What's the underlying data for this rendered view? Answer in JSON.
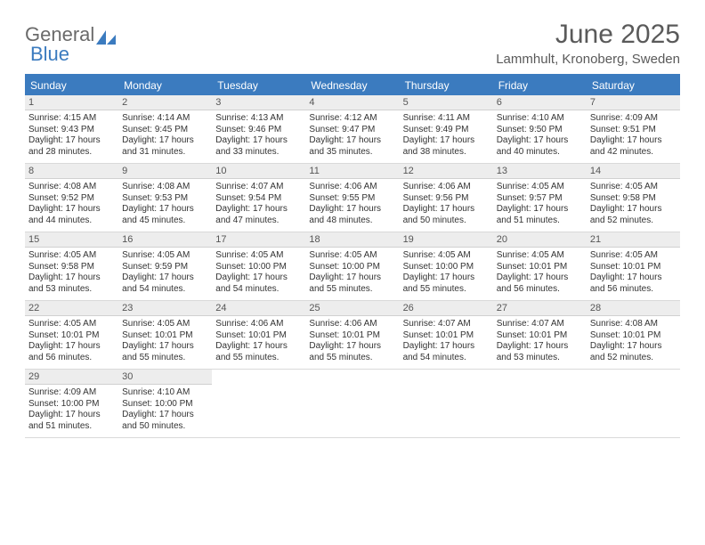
{
  "brand": {
    "text1": "General",
    "text2": "Blue",
    "gray_color": "#6a6a6a",
    "blue_color": "#3b7bbf"
  },
  "title": "June 2025",
  "location": "Lammhult, Kronoberg, Sweden",
  "colors": {
    "header_bg": "#3b7bbf",
    "header_text": "#ffffff",
    "daynum_bg": "#ededed",
    "border": "#d9d9d9",
    "text": "#333333"
  },
  "dayNames": [
    "Sunday",
    "Monday",
    "Tuesday",
    "Wednesday",
    "Thursday",
    "Friday",
    "Saturday"
  ],
  "weeks": [
    [
      {
        "n": "1",
        "sr": "4:15 AM",
        "ss": "9:43 PM",
        "dl": "17 hours and 28 minutes."
      },
      {
        "n": "2",
        "sr": "4:14 AM",
        "ss": "9:45 PM",
        "dl": "17 hours and 31 minutes."
      },
      {
        "n": "3",
        "sr": "4:13 AM",
        "ss": "9:46 PM",
        "dl": "17 hours and 33 minutes."
      },
      {
        "n": "4",
        "sr": "4:12 AM",
        "ss": "9:47 PM",
        "dl": "17 hours and 35 minutes."
      },
      {
        "n": "5",
        "sr": "4:11 AM",
        "ss": "9:49 PM",
        "dl": "17 hours and 38 minutes."
      },
      {
        "n": "6",
        "sr": "4:10 AM",
        "ss": "9:50 PM",
        "dl": "17 hours and 40 minutes."
      },
      {
        "n": "7",
        "sr": "4:09 AM",
        "ss": "9:51 PM",
        "dl": "17 hours and 42 minutes."
      }
    ],
    [
      {
        "n": "8",
        "sr": "4:08 AM",
        "ss": "9:52 PM",
        "dl": "17 hours and 44 minutes."
      },
      {
        "n": "9",
        "sr": "4:08 AM",
        "ss": "9:53 PM",
        "dl": "17 hours and 45 minutes."
      },
      {
        "n": "10",
        "sr": "4:07 AM",
        "ss": "9:54 PM",
        "dl": "17 hours and 47 minutes."
      },
      {
        "n": "11",
        "sr": "4:06 AM",
        "ss": "9:55 PM",
        "dl": "17 hours and 48 minutes."
      },
      {
        "n": "12",
        "sr": "4:06 AM",
        "ss": "9:56 PM",
        "dl": "17 hours and 50 minutes."
      },
      {
        "n": "13",
        "sr": "4:05 AM",
        "ss": "9:57 PM",
        "dl": "17 hours and 51 minutes."
      },
      {
        "n": "14",
        "sr": "4:05 AM",
        "ss": "9:58 PM",
        "dl": "17 hours and 52 minutes."
      }
    ],
    [
      {
        "n": "15",
        "sr": "4:05 AM",
        "ss": "9:58 PM",
        "dl": "17 hours and 53 minutes."
      },
      {
        "n": "16",
        "sr": "4:05 AM",
        "ss": "9:59 PM",
        "dl": "17 hours and 54 minutes."
      },
      {
        "n": "17",
        "sr": "4:05 AM",
        "ss": "10:00 PM",
        "dl": "17 hours and 54 minutes."
      },
      {
        "n": "18",
        "sr": "4:05 AM",
        "ss": "10:00 PM",
        "dl": "17 hours and 55 minutes."
      },
      {
        "n": "19",
        "sr": "4:05 AM",
        "ss": "10:00 PM",
        "dl": "17 hours and 55 minutes."
      },
      {
        "n": "20",
        "sr": "4:05 AM",
        "ss": "10:01 PM",
        "dl": "17 hours and 56 minutes."
      },
      {
        "n": "21",
        "sr": "4:05 AM",
        "ss": "10:01 PM",
        "dl": "17 hours and 56 minutes."
      }
    ],
    [
      {
        "n": "22",
        "sr": "4:05 AM",
        "ss": "10:01 PM",
        "dl": "17 hours and 56 minutes."
      },
      {
        "n": "23",
        "sr": "4:05 AM",
        "ss": "10:01 PM",
        "dl": "17 hours and 55 minutes."
      },
      {
        "n": "24",
        "sr": "4:06 AM",
        "ss": "10:01 PM",
        "dl": "17 hours and 55 minutes."
      },
      {
        "n": "25",
        "sr": "4:06 AM",
        "ss": "10:01 PM",
        "dl": "17 hours and 55 minutes."
      },
      {
        "n": "26",
        "sr": "4:07 AM",
        "ss": "10:01 PM",
        "dl": "17 hours and 54 minutes."
      },
      {
        "n": "27",
        "sr": "4:07 AM",
        "ss": "10:01 PM",
        "dl": "17 hours and 53 minutes."
      },
      {
        "n": "28",
        "sr": "4:08 AM",
        "ss": "10:01 PM",
        "dl": "17 hours and 52 minutes."
      }
    ],
    [
      {
        "n": "29",
        "sr": "4:09 AM",
        "ss": "10:00 PM",
        "dl": "17 hours and 51 minutes."
      },
      {
        "n": "30",
        "sr": "4:10 AM",
        "ss": "10:00 PM",
        "dl": "17 hours and 50 minutes."
      },
      null,
      null,
      null,
      null,
      null
    ]
  ],
  "labels": {
    "sunrise": "Sunrise: ",
    "sunset": "Sunset: ",
    "daylight": "Daylight: "
  }
}
